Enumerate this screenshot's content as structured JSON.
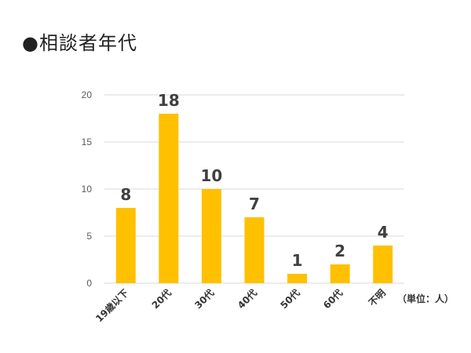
{
  "page": {
    "title": "●相談者年代"
  },
  "chart_data": {
    "type": "bar",
    "categories": [
      "19歳以下",
      "20代",
      "30代",
      "40代",
      "50代",
      "60代",
      "不明"
    ],
    "values": [
      8,
      18,
      10,
      7,
      1,
      2,
      4
    ],
    "ylim": [
      0,
      20
    ],
    "yticks": [
      0,
      5,
      10,
      15,
      20
    ],
    "unit_label": "（単位：人）",
    "grid": true,
    "bar_color": "#FFC000",
    "grid_color": "#D9D9D9",
    "data_labels": true
  }
}
